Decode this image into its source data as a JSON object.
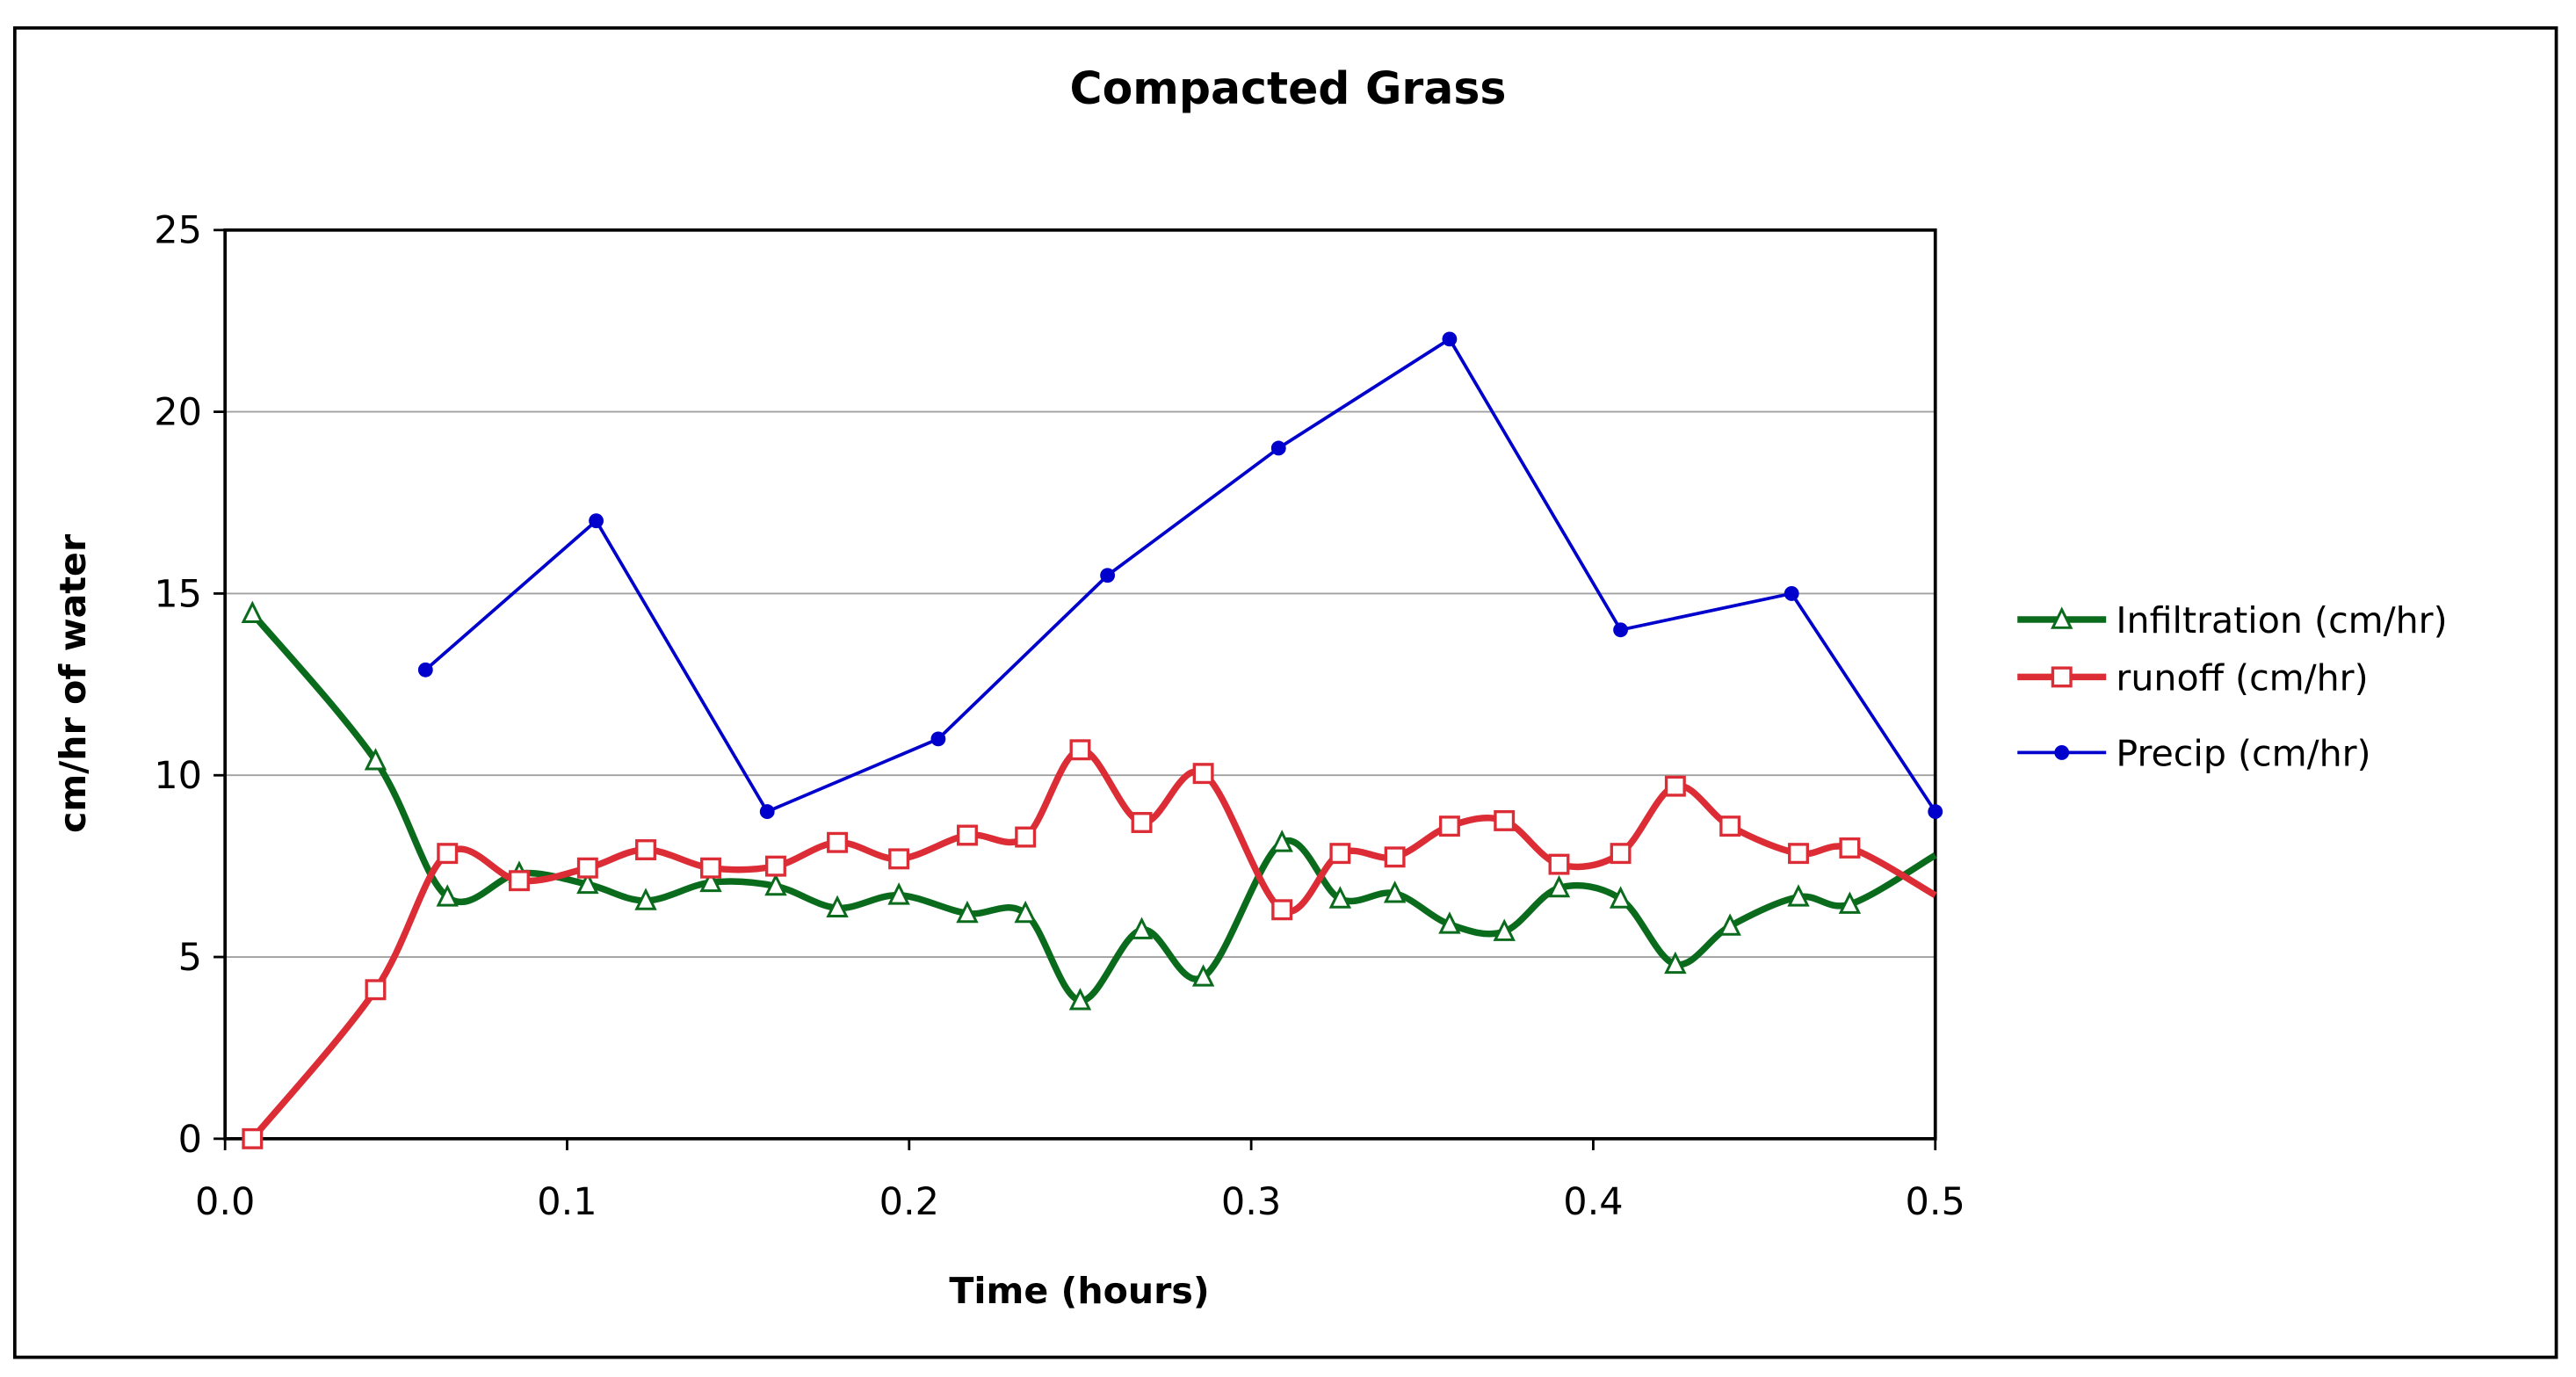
{
  "chart_data": {
    "type": "line",
    "title": "Compacted Grass",
    "xlabel": "Time (hours)",
    "ylabel": "cm/hr of water",
    "xlim": [
      0,
      0.5
    ],
    "ylim": [
      0,
      25
    ],
    "x_ticks": [
      "0.0",
      "0.1",
      "0.2",
      "0.3",
      "0.4",
      "0.5"
    ],
    "y_ticks": [
      "0",
      "5",
      "10",
      "15",
      "20",
      "25"
    ],
    "grid": "horizontal",
    "legend_position": "right",
    "series": [
      {
        "name": "Infiltration (cm/hr)",
        "color": "#0b6b1d",
        "marker": "triangle",
        "smooth": true,
        "x": [
          0.008,
          0.044,
          0.065,
          0.086,
          0.106,
          0.123,
          0.142,
          0.161,
          0.179,
          0.197,
          0.217,
          0.234,
          0.25,
          0.268,
          0.286,
          0.309,
          0.326,
          0.342,
          0.358,
          0.374,
          0.39,
          0.408,
          0.424,
          0.44,
          0.46,
          0.475,
          0.5
        ],
        "y": [
          14.45,
          10.4,
          6.65,
          7.3,
          7.0,
          6.55,
          7.05,
          6.95,
          6.35,
          6.7,
          6.2,
          6.2,
          3.8,
          5.75,
          4.45,
          8.15,
          6.6,
          6.75,
          5.9,
          5.7,
          6.9,
          6.6,
          4.8,
          5.85,
          6.65,
          6.45,
          7.8
        ]
      },
      {
        "name": "runoff (cm/hr)",
        "color": "#dc2c35",
        "marker": "square",
        "smooth": true,
        "x": [
          0.008,
          0.044,
          0.065,
          0.086,
          0.106,
          0.123,
          0.142,
          0.161,
          0.179,
          0.197,
          0.217,
          0.234,
          0.25,
          0.268,
          0.286,
          0.309,
          0.326,
          0.342,
          0.358,
          0.374,
          0.39,
          0.408,
          0.424,
          0.44,
          0.46,
          0.475,
          0.5
        ],
        "y": [
          0,
          4.1,
          7.85,
          7.1,
          7.45,
          7.95,
          7.45,
          7.5,
          8.15,
          7.7,
          8.35,
          8.3,
          10.7,
          8.7,
          10.05,
          6.3,
          7.85,
          7.75,
          8.6,
          8.75,
          7.55,
          7.85,
          9.7,
          8.6,
          7.85,
          8.0,
          6.7
        ]
      },
      {
        "name": "Precip (cm/hr)",
        "color": "#0000cc",
        "marker": "circle",
        "smooth": false,
        "x": [
          0.0586,
          0.1085,
          0.1585,
          0.2085,
          0.258,
          0.308,
          0.358,
          0.408,
          0.458,
          0.5
        ],
        "y": [
          12.9,
          17,
          9,
          11,
          15.5,
          19,
          22,
          14,
          15,
          9
        ]
      }
    ]
  }
}
